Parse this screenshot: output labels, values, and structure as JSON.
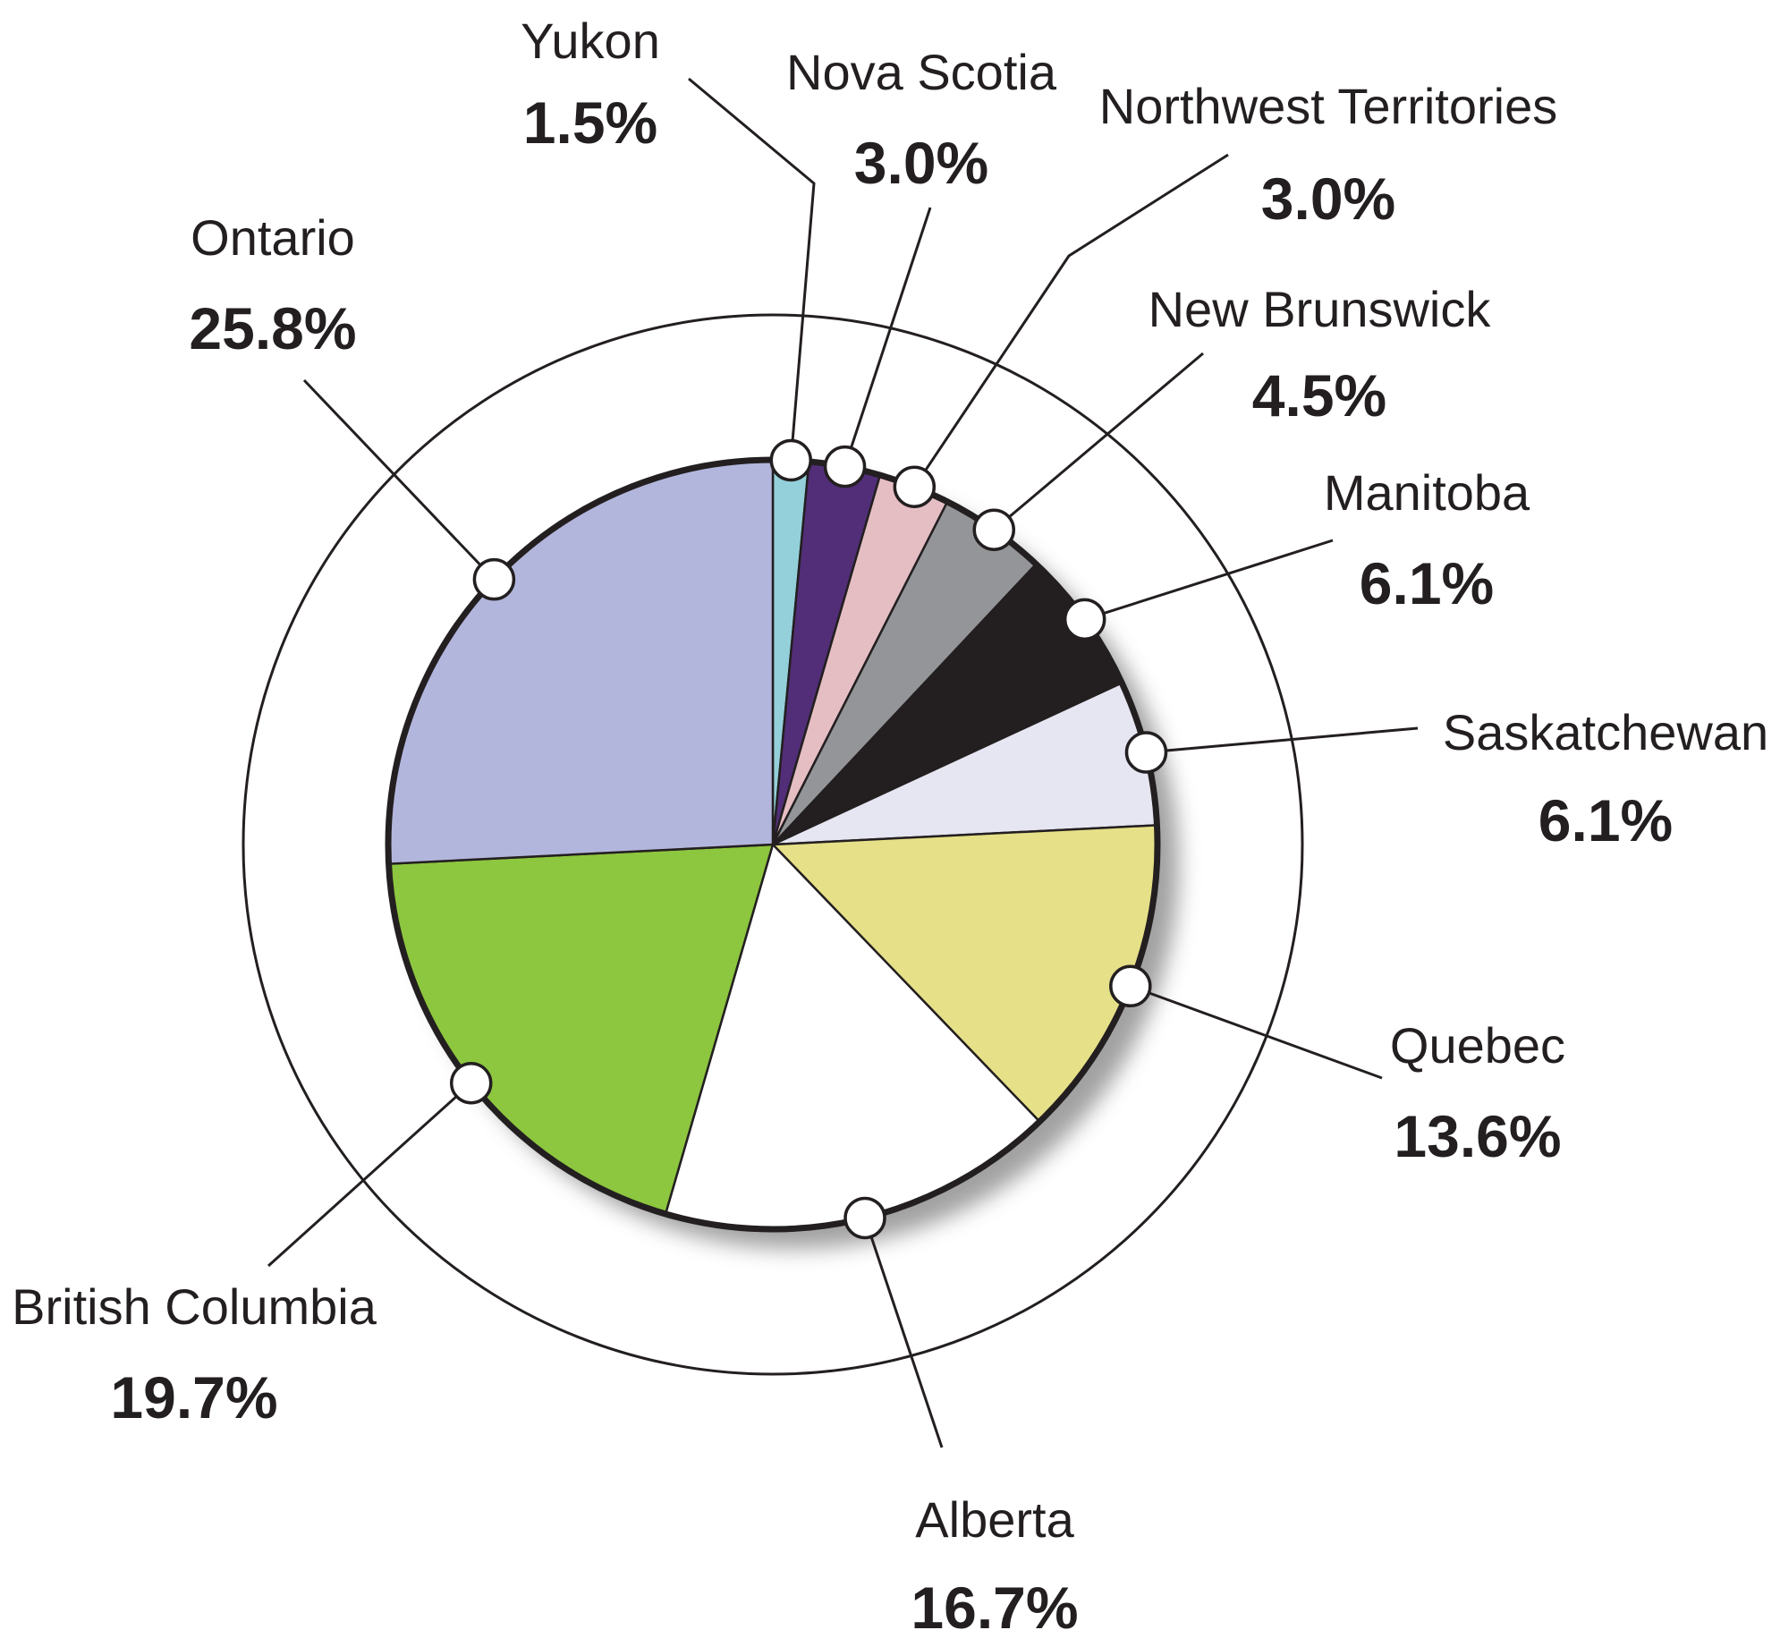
{
  "chart_data": {
    "type": "pie",
    "title": "",
    "slices": [
      {
        "label": "Yukon",
        "value": 1.5,
        "value_text": "1.5%",
        "color": "#94d0da"
      },
      {
        "label": "Nova Scotia",
        "value": 3.0,
        "value_text": "3.0%",
        "color": "#522e78"
      },
      {
        "label": "Northwest Territories",
        "value": 3.0,
        "value_text": "3.0%",
        "color": "#e5bec4"
      },
      {
        "label": "New Brunswick",
        "value": 4.5,
        "value_text": "4.5%",
        "color": "#939598"
      },
      {
        "label": "Manitoba",
        "value": 6.1,
        "value_text": "6.1%",
        "color": "#231f20"
      },
      {
        "label": "Saskatchewan",
        "value": 6.1,
        "value_text": "6.1%",
        "color": "#e6e6f2"
      },
      {
        "label": "Quebec",
        "value": 13.6,
        "value_text": "13.6%",
        "color": "#e6e088"
      },
      {
        "label": "Alberta",
        "value": 16.7,
        "value_text": "16.7%",
        "color": "#ffffff"
      },
      {
        "label": "British Columbia",
        "value": 19.7,
        "value_text": "19.7%",
        "color": "#8dc63f"
      },
      {
        "label": "Ontario",
        "value": 25.8,
        "value_text": "25.8%",
        "color": "#b3b6dc"
      }
    ],
    "start_angle": "12 o'clock",
    "direction": "clockwise",
    "legend": "none (labels placed around the pie with leader lines)",
    "outer_ring": true
  }
}
